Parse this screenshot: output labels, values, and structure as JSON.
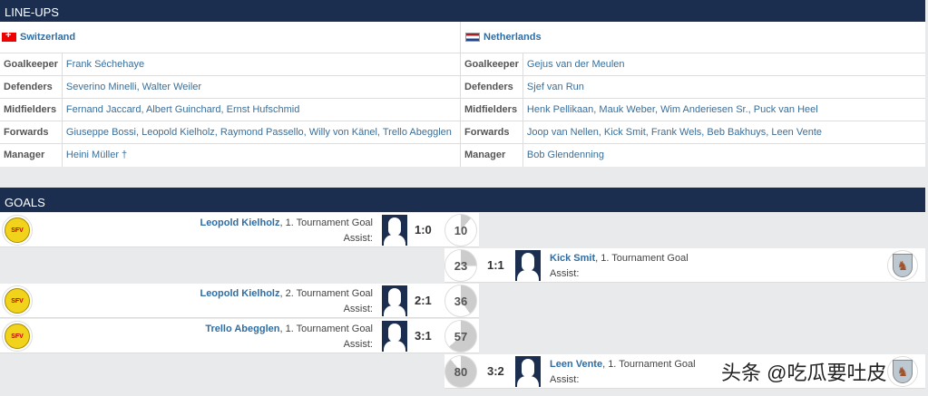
{
  "lineups": {
    "title": "LINE-UPS",
    "home": {
      "team": "Switzerland",
      "flag": "flag-switzerland",
      "rows": [
        {
          "label": "Goalkeeper",
          "value": "Frank Séchehaye"
        },
        {
          "label": "Defenders",
          "value": "Severino Minelli, Walter Weiler"
        },
        {
          "label": "Midfielders",
          "value": "Fernand Jaccard, Albert Guinchard, Ernst Hufschmid"
        },
        {
          "label": "Forwards",
          "value": "Giuseppe Bossi, Leopold Kielholz, Raymond Passello, Willy von Känel, Trello Abegglen"
        },
        {
          "label": "Manager",
          "value": "Heini Müller †"
        }
      ]
    },
    "away": {
      "team": "Netherlands",
      "flag": "flag-netherlands",
      "rows": [
        {
          "label": "Goalkeeper",
          "value": "Gejus van der Meulen"
        },
        {
          "label": "Defenders",
          "value": "Sjef van Run"
        },
        {
          "label": "Midfielders",
          "value": "Henk Pellikaan, Mauk Weber, Wim Anderiesen Sr., Puck van Heel"
        },
        {
          "label": "Forwards",
          "value": "Joop van Nellen, Kick Smit, Frank Wels, Beb Bakhuys, Leen Vente"
        },
        {
          "label": "Manager",
          "value": "Bob Glendenning"
        }
      ]
    }
  },
  "goals": {
    "title": "GOALS",
    "logo_home": "SFV-ASF",
    "assist_label": "Assist:",
    "items": [
      {
        "side": "home",
        "scorer": "Leopold Kielholz",
        "note": ", 1. Tournament Goal",
        "score": "1:0",
        "minute": "10"
      },
      {
        "side": "away",
        "scorer": "Kick Smit",
        "note": ", 1. Tournament Goal",
        "score": "1:1",
        "minute": "23"
      },
      {
        "side": "home",
        "scorer": "Leopold Kielholz",
        "note": ", 2. Tournament Goal",
        "score": "2:1",
        "minute": "36"
      },
      {
        "side": "home",
        "scorer": "Trello Abegglen",
        "note": ", 1. Tournament Goal",
        "score": "3:1",
        "minute": "57"
      },
      {
        "side": "away",
        "scorer": "Leen Vente",
        "note": ", 1. Tournament Goal",
        "score": "3:2",
        "minute": "80"
      }
    ]
  },
  "watermark": "头条 @吃瓜要吐皮",
  "colors": {
    "header": "#1b2e4f",
    "link": "#2e6da4"
  }
}
